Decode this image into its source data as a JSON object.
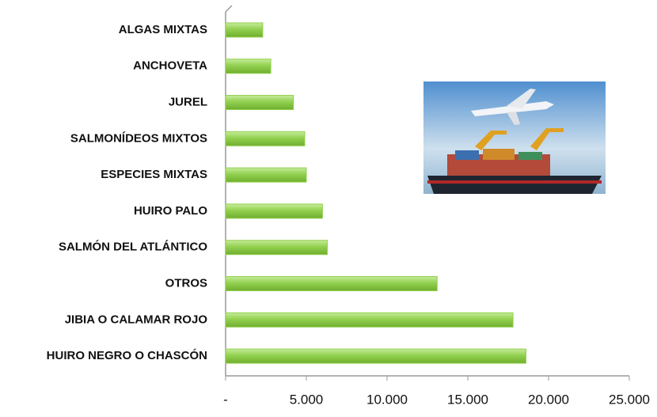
{
  "chart_data": {
    "type": "bar",
    "orientation": "horizontal",
    "categories": [
      "ALGAS MIXTAS",
      "ANCHOVETA",
      "JUREL",
      "SALMONÍDEOS MIXTOS",
      "ESPECIES MIXTAS",
      "HUIRO PALO",
      "SALMÓN DEL ATLÁNTICO",
      "OTROS",
      "JIBIA O CALAMAR ROJO",
      "HUIRO NEGRO O CHASCÓN"
    ],
    "values": [
      2300,
      2800,
      4200,
      4900,
      5000,
      6000,
      6300,
      13100,
      17800,
      18600
    ],
    "color": "#92d050",
    "xlim": [
      0,
      25000
    ],
    "xticks": [
      {
        "value": 0,
        "label": "-"
      },
      {
        "value": 5000,
        "label": "5.000"
      },
      {
        "value": 10000,
        "label": "10.000"
      },
      {
        "value": 15000,
        "label": "15.000"
      },
      {
        "value": 20000,
        "label": "20.000"
      },
      {
        "value": 25000,
        "label": "25.000"
      }
    ],
    "grid": false
  }
}
